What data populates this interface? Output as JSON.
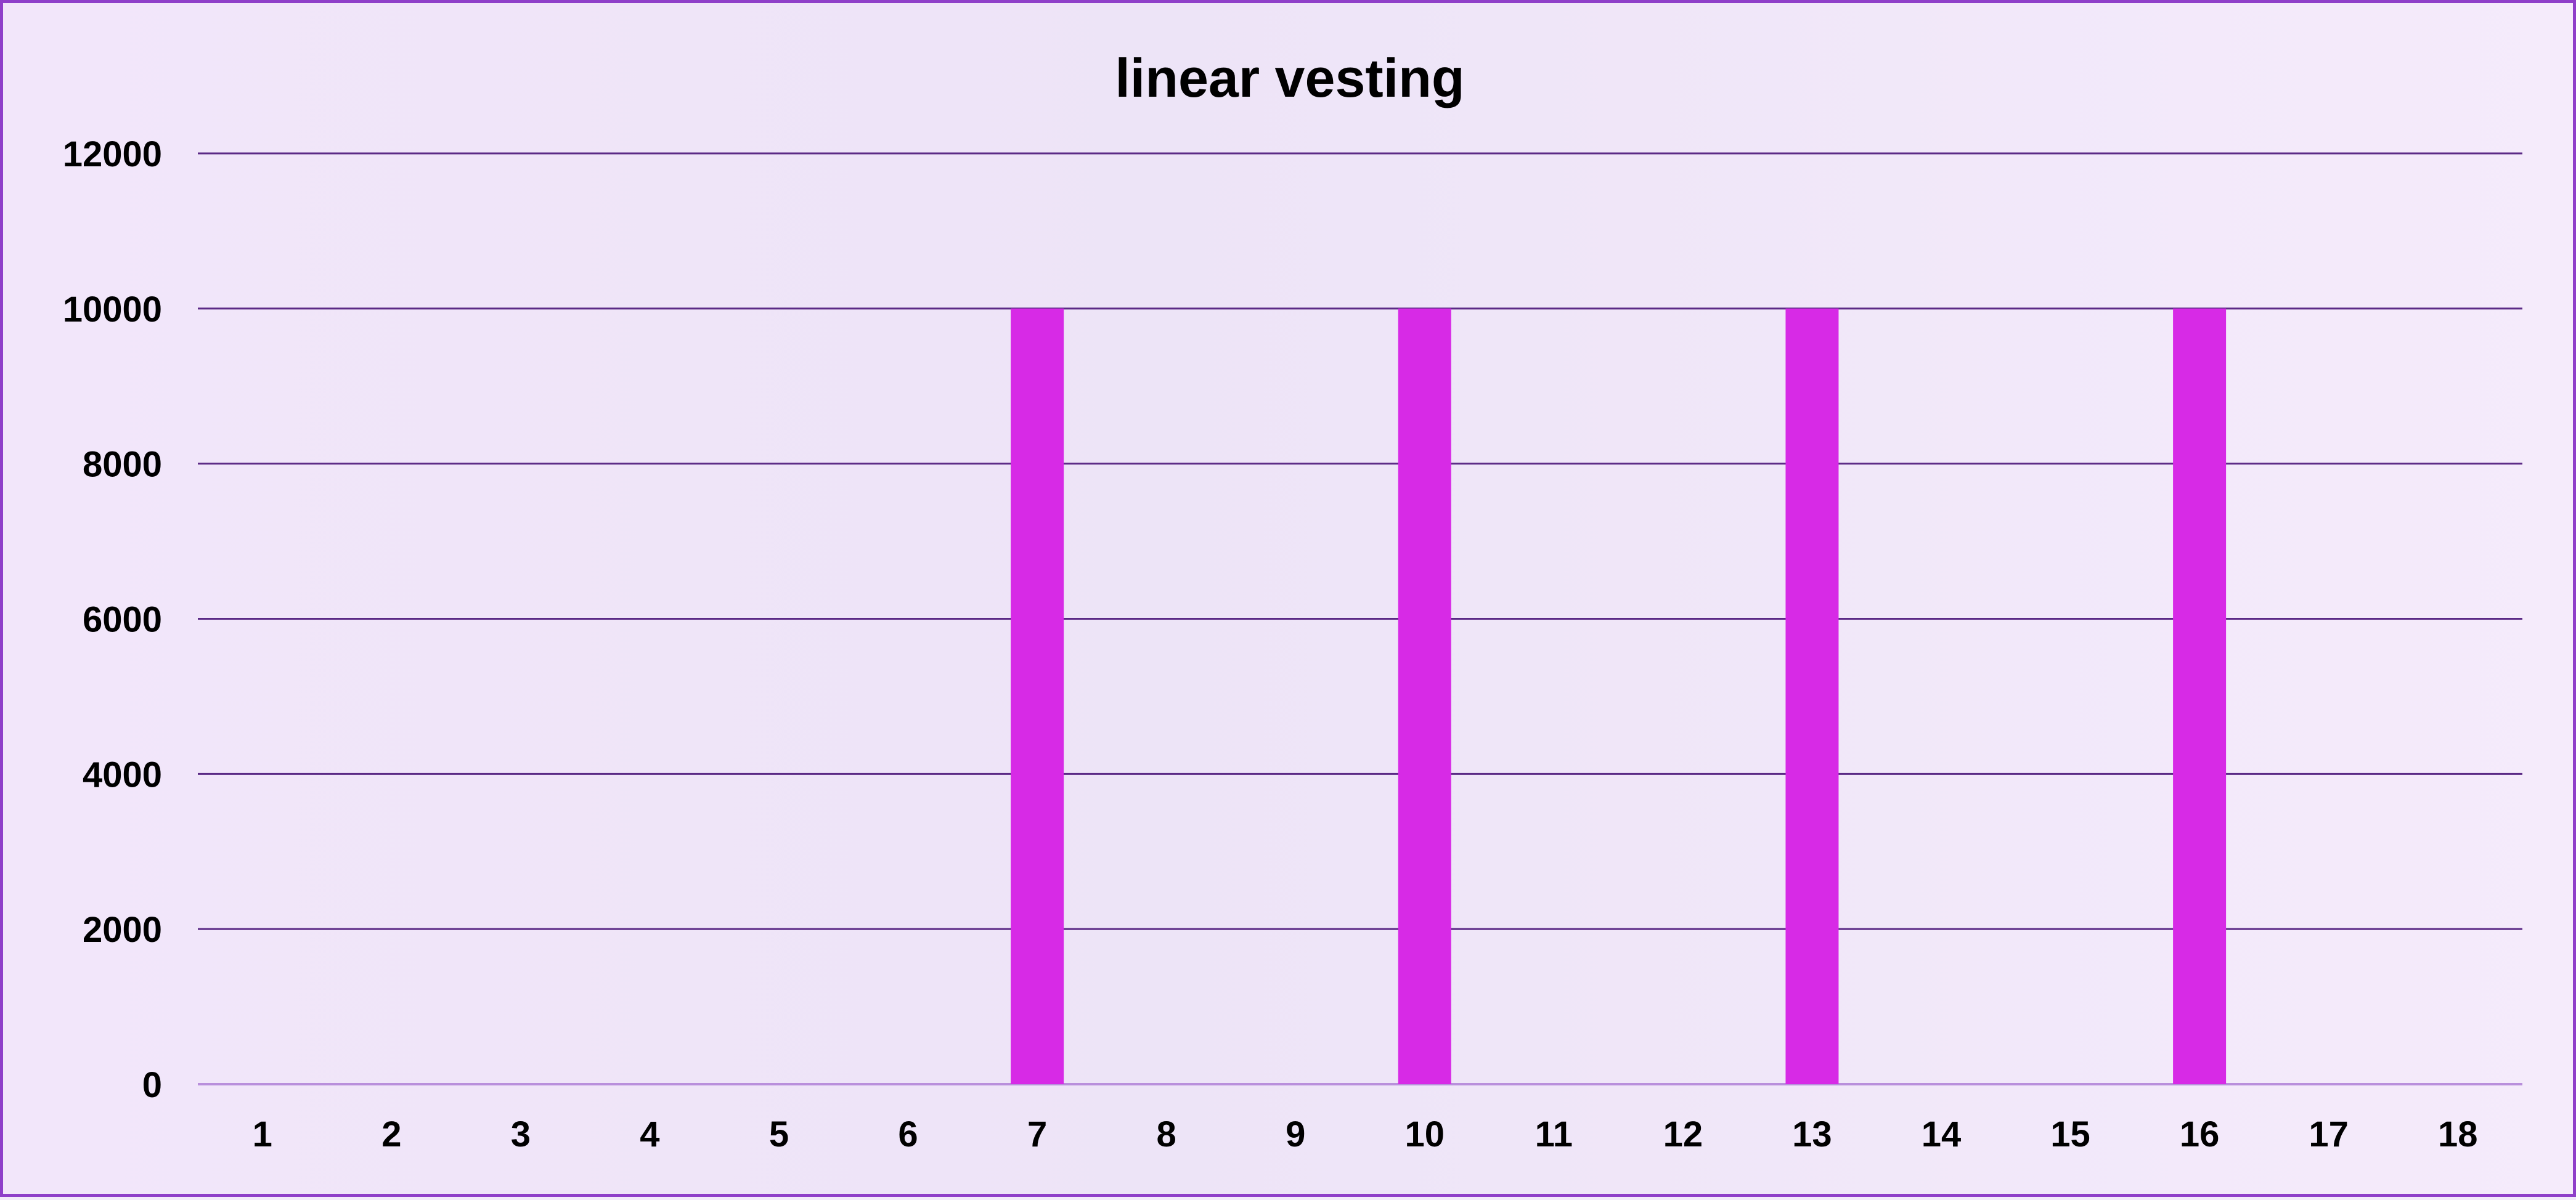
{
  "chart_data": {
    "type": "bar",
    "title": "linear vesting",
    "xlabel": "",
    "ylabel": "",
    "categories": [
      "1",
      "2",
      "3",
      "4",
      "5",
      "6",
      "7",
      "8",
      "9",
      "10",
      "11",
      "12",
      "13",
      "14",
      "15",
      "16",
      "17",
      "18"
    ],
    "values": [
      0,
      0,
      0,
      0,
      0,
      0,
      10000,
      0,
      0,
      10000,
      0,
      0,
      10000,
      0,
      0,
      10000,
      0,
      0
    ],
    "ylim": [
      0,
      12000
    ],
    "yticks": [
      "0",
      "2000",
      "4000",
      "6000",
      "8000",
      "10000",
      "12000"
    ],
    "grid": true,
    "legend": "none",
    "colors": {
      "bar": "#d72ae6",
      "grid": "#5b2a86",
      "frame": "#8f3fc9"
    }
  }
}
